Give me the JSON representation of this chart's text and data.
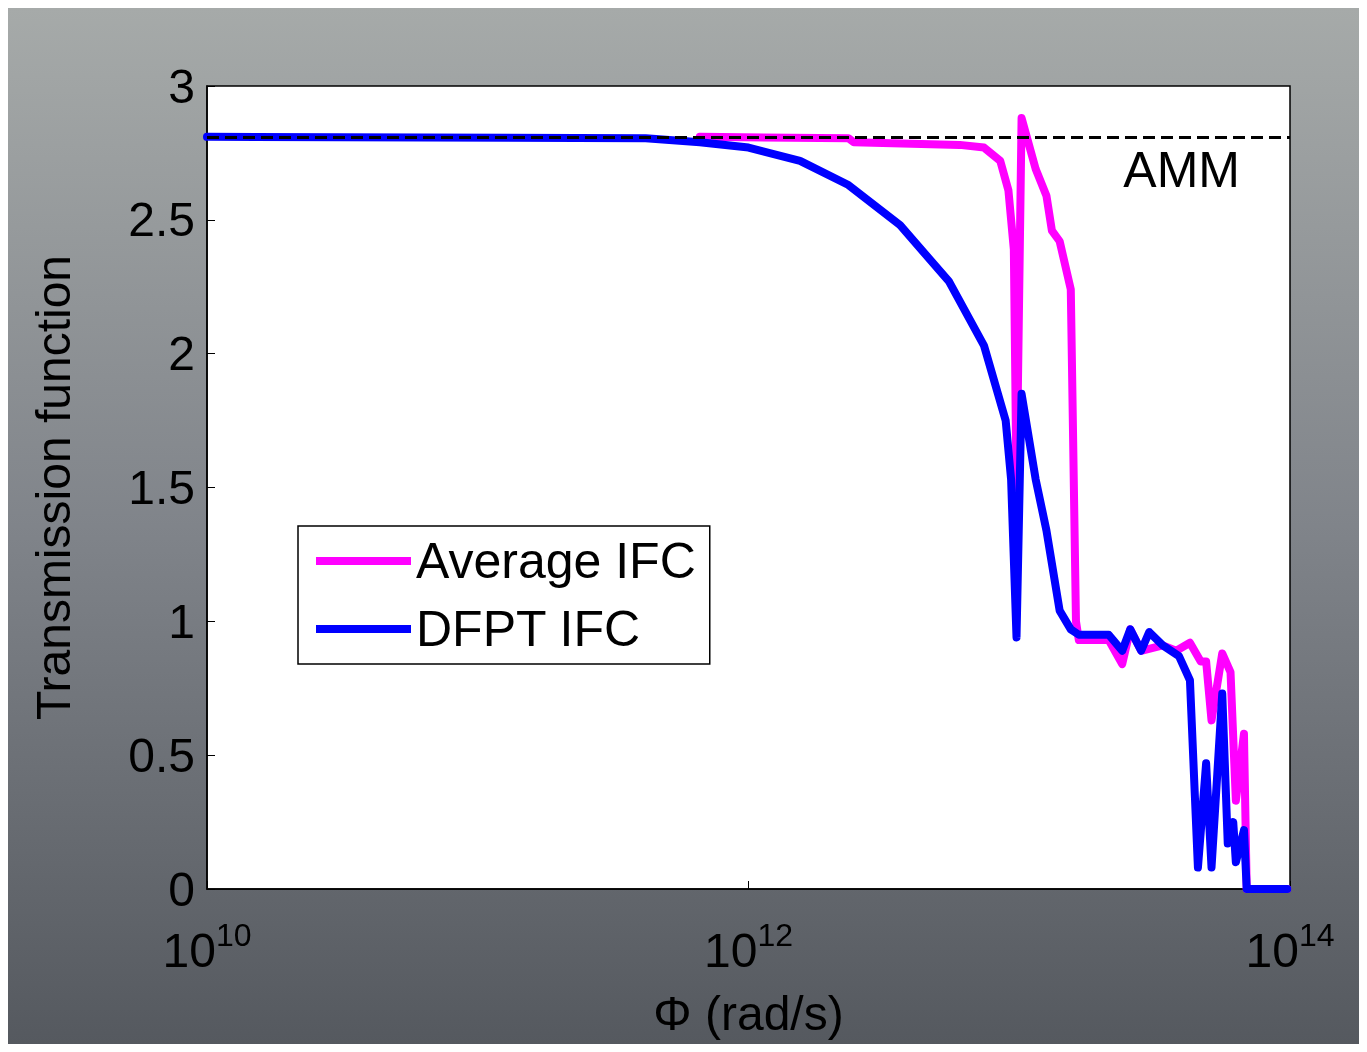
{
  "chart_data": {
    "type": "line",
    "xlabel": "Φ (rad/s)",
    "ylabel": "Transmission function",
    "log": "x",
    "xlim": [
      10000000000.0,
      100000000000000.0
    ],
    "xticks": [
      {
        "value": 10000000000.0,
        "label": "10$^{10}$"
      },
      {
        "value": 1000000000000.0,
        "label": "10$^{12}$"
      },
      {
        "value": 100000000000000.0,
        "label": "10$^{14}$"
      }
    ],
    "ylim": [
      0,
      3
    ],
    "yticks": [
      0,
      0.5,
      1,
      1.5,
      2,
      2.5,
      3
    ],
    "grid": false,
    "legend": "left",
    "marker": "none",
    "line_style": "solid",
    "ref_lines": [
      {
        "axis": "y",
        "value": 2.81,
        "label": "AMM",
        "color": "#000000",
        "line_style": "dashed"
      }
    ],
    "series": [
      {
        "name": "Average IFC",
        "color": "#ff00ff",
        "x": [
          661000000000.0,
          2340000000000.0,
          2450000000000.0,
          6030000000000.0,
          7410000000000.0,
          8510000000000.0,
          9120000000000.0,
          9550000000000.0,
          9770000000000.0,
          10200000000000.0,
          11500000000000.0,
          12600000000000.0,
          13200000000000.0,
          14100000000000.0,
          15500000000000.0,
          16200000000000.0,
          16600000000000.0,
          21400000000000.0,
          24000000000000.0,
          25700000000000.0,
          28200000000000.0,
          33900000000000.0,
          38000000000000.0,
          42700000000000.0,
          46800000000000.0,
          49000000000000.0,
          51300000000000.0,
          56200000000000.0,
          60300000000000.0,
          63100000000000.0,
          67600000000000.0,
          69200000000000.0,
          97700000000000.0
        ],
        "values": [
          2.81,
          2.805,
          2.79,
          2.78,
          2.77,
          2.72,
          2.61,
          2.39,
          1.5,
          2.88,
          2.69,
          2.59,
          2.46,
          2.42,
          2.24,
          1.0,
          0.93,
          0.93,
          0.84,
          0.97,
          0.89,
          0.91,
          0.89,
          0.92,
          0.85,
          0.85,
          0.63,
          0.88,
          0.81,
          0.33,
          0.58,
          0,
          0
        ]
      },
      {
        "name": "DFPT IFC",
        "color": "#0000ff",
        "x": [
          10000000000.0,
          417000000000.0,
          661000000000.0,
          1000000000000.0,
          1550000000000.0,
          2340000000000.0,
          3630000000000.0,
          5500000000000.0,
          7410000000000.0,
          8910000000000.0,
          9330000000000.0,
          9770000000000.0,
          10200000000000.0,
          11500000000000.0,
          12600000000000.0,
          14100000000000.0,
          15500000000000.0,
          16600000000000.0,
          21400000000000.0,
          24000000000000.0,
          25700000000000.0,
          28200000000000.0,
          30200000000000.0,
          33900000000000.0,
          38900000000000.0,
          42700000000000.0,
          45700000000000.0,
          49000000000000.0,
          51300000000000.0,
          56200000000000.0,
          58900000000000.0,
          61700000000000.0,
          63100000000000.0,
          67600000000000.0,
          69200000000000.0,
          97700000000000.0
        ],
        "values": [
          2.81,
          2.805,
          2.79,
          2.77,
          2.72,
          2.63,
          2.48,
          2.27,
          2.03,
          1.75,
          1.53,
          0.94,
          1.85,
          1.53,
          1.34,
          1.04,
          0.97,
          0.95,
          0.95,
          0.89,
          0.97,
          0.89,
          0.96,
          0.91,
          0.87,
          0.78,
          0.08,
          0.47,
          0.08,
          0.73,
          0.17,
          0.25,
          0.1,
          0.22,
          0,
          0
        ]
      }
    ]
  }
}
